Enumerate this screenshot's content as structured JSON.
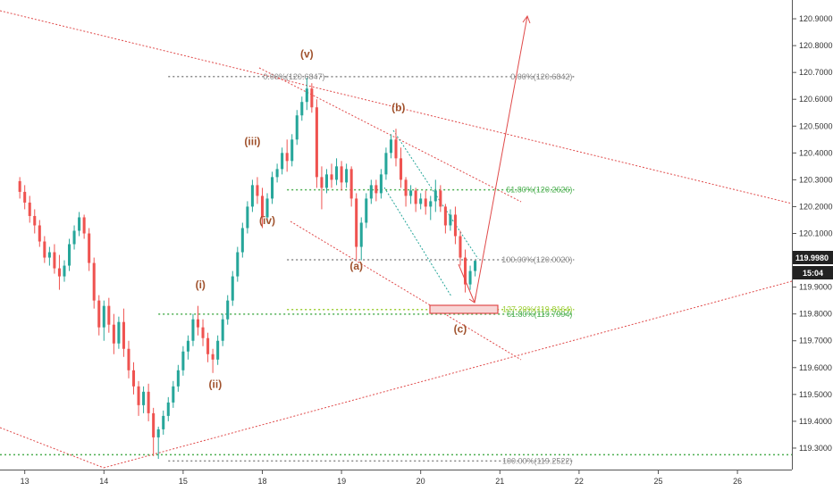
{
  "chart_data": {
    "type": "candlestick",
    "y_ticks": [
      "120.9000",
      "120.8000",
      "120.7000",
      "120.6000",
      "120.5000",
      "120.4000",
      "120.3000",
      "120.2000",
      "120.1000",
      "119.9000",
      "119.8000",
      "119.7000",
      "119.6000",
      "119.5000",
      "119.4000",
      "119.3000"
    ],
    "ylim": [
      119.22,
      120.97
    ],
    "x_ticks": [
      "13",
      "14",
      "15",
      "18",
      "19",
      "20",
      "21",
      "22",
      "25",
      "26"
    ],
    "x_tick_index": [
      1,
      17,
      33,
      49,
      65,
      81,
      97,
      113,
      129,
      145
    ],
    "x_range": [
      -4,
      156
    ],
    "last_price": "119.9980",
    "countdown": "15:04",
    "fib_levels": [
      {
        "label": "0.00%(120.6847)",
        "value": 120.6847,
        "color": "#888888",
        "x0": 30,
        "x1": 62
      },
      {
        "label": "0.00%(120.6842)",
        "value": 120.6842,
        "color": "#888888",
        "x0": 62,
        "x1": 112
      },
      {
        "label": "61.80%(120.2626)",
        "value": 120.2626,
        "color": "#4caf50",
        "x0": 54,
        "x1": 112
      },
      {
        "label": "100.00%(120.0020)",
        "value": 120.002,
        "color": "#888888",
        "x0": 54,
        "x1": 112
      },
      {
        "label": "127.20%(119.8164)",
        "value": 119.8164,
        "color": "#9acd32",
        "x0": 54,
        "x1": 112
      },
      {
        "label": "61.80%(119.7994)",
        "value": 119.7994,
        "color": "#4caf50",
        "x0": 28,
        "x1": 112
      },
      {
        "label": "100.00%(119.2522)",
        "value": 119.2522,
        "color": "#888888",
        "x0": 30,
        "x1": 112
      }
    ],
    "wave_labels": [
      {
        "label": "(i)",
        "x": 36.5,
        "y": 119.895
      },
      {
        "label": "(ii)",
        "x": 39.5,
        "y": 119.525
      },
      {
        "label": "(iii)",
        "x": 47,
        "y": 120.43
      },
      {
        "label": "(iv)",
        "x": 50,
        "y": 120.135
      },
      {
        "label": "(v)",
        "x": 58,
        "y": 120.755
      },
      {
        "label": "(a)",
        "x": 68,
        "y": 119.965
      },
      {
        "label": "(b)",
        "x": 76.5,
        "y": 120.555
      },
      {
        "label": "(c)",
        "x": 89,
        "y": 119.73
      }
    ],
    "candles": [
      [
        120.295,
        120.31,
        120.23,
        120.255
      ],
      [
        120.255,
        120.28,
        120.19,
        120.215
      ],
      [
        120.215,
        120.24,
        120.14,
        120.165
      ],
      [
        120.165,
        120.19,
        120.1,
        120.13
      ],
      [
        120.13,
        120.15,
        120.05,
        120.07
      ],
      [
        120.07,
        120.09,
        119.99,
        120.01
      ],
      [
        120.01,
        120.05,
        119.98,
        120.03
      ],
      [
        120.03,
        120.06,
        119.95,
        119.97
      ],
      [
        119.97,
        120.02,
        119.89,
        119.94
      ],
      [
        119.94,
        120.0,
        119.92,
        119.98
      ],
      [
        119.98,
        120.08,
        119.96,
        120.06
      ],
      [
        120.06,
        120.13,
        120.04,
        120.11
      ],
      [
        120.11,
        120.18,
        120.09,
        120.16
      ],
      [
        120.16,
        120.17,
        120.08,
        120.1
      ],
      [
        120.1,
        120.12,
        119.96,
        119.99
      ],
      [
        119.99,
        120.01,
        119.82,
        119.85
      ],
      [
        119.85,
        119.87,
        119.72,
        119.75
      ],
      [
        119.75,
        119.85,
        119.7,
        119.83
      ],
      [
        119.83,
        119.86,
        119.73,
        119.76
      ],
      [
        119.76,
        119.8,
        119.65,
        119.69
      ],
      [
        119.69,
        119.79,
        119.67,
        119.77
      ],
      [
        119.77,
        119.82,
        119.64,
        119.67
      ],
      [
        119.67,
        119.7,
        119.56,
        119.59
      ],
      [
        119.59,
        119.62,
        119.5,
        119.53
      ],
      [
        119.53,
        119.55,
        119.42,
        119.46
      ],
      [
        119.46,
        119.53,
        119.43,
        119.51
      ],
      [
        119.51,
        119.54,
        119.4,
        119.43
      ],
      [
        119.43,
        119.45,
        119.27,
        119.34
      ],
      [
        119.34,
        119.38,
        119.26,
        119.37
      ],
      [
        119.37,
        119.44,
        119.35,
        119.42
      ],
      [
        119.42,
        119.49,
        119.4,
        119.47
      ],
      [
        119.47,
        119.55,
        119.45,
        119.53
      ],
      [
        119.53,
        119.61,
        119.51,
        119.59
      ],
      [
        119.59,
        119.68,
        119.57,
        119.66
      ],
      [
        119.66,
        119.72,
        119.63,
        119.7
      ],
      [
        119.7,
        119.8,
        119.68,
        119.78
      ],
      [
        119.78,
        119.83,
        119.72,
        119.75
      ],
      [
        119.75,
        119.78,
        119.68,
        119.71
      ],
      [
        119.71,
        119.73,
        119.62,
        119.65
      ],
      [
        119.65,
        119.67,
        119.58,
        119.63
      ],
      [
        119.63,
        119.72,
        119.61,
        119.7
      ],
      [
        119.7,
        119.8,
        119.68,
        119.78
      ],
      [
        119.78,
        119.87,
        119.76,
        119.85
      ],
      [
        119.85,
        119.96,
        119.83,
        119.94
      ],
      [
        119.94,
        120.05,
        119.92,
        120.03
      ],
      [
        120.03,
        120.14,
        120.01,
        120.12
      ],
      [
        120.12,
        120.22,
        120.1,
        120.2
      ],
      [
        120.2,
        120.3,
        120.18,
        120.28
      ],
      [
        120.28,
        120.31,
        120.21,
        120.24
      ],
      [
        120.24,
        120.27,
        120.12,
        120.16
      ],
      [
        120.16,
        120.25,
        120.14,
        120.23
      ],
      [
        120.23,
        120.33,
        120.21,
        120.31
      ],
      [
        120.31,
        120.36,
        120.29,
        120.34
      ],
      [
        120.34,
        120.42,
        120.32,
        120.4
      ],
      [
        120.4,
        120.45,
        120.33,
        120.37
      ],
      [
        120.37,
        120.47,
        120.35,
        120.45
      ],
      [
        120.45,
        120.56,
        120.43,
        120.54
      ],
      [
        120.54,
        120.61,
        120.52,
        120.59
      ],
      [
        120.59,
        120.68,
        120.56,
        120.64
      ],
      [
        120.64,
        120.66,
        120.55,
        120.57
      ],
      [
        120.57,
        120.6,
        120.27,
        120.31
      ],
      [
        120.31,
        120.35,
        120.19,
        120.27
      ],
      [
        120.27,
        120.34,
        120.25,
        120.32
      ],
      [
        120.32,
        120.36,
        120.27,
        120.3
      ],
      [
        120.3,
        120.38,
        120.28,
        120.35
      ],
      [
        120.35,
        120.37,
        120.26,
        120.29
      ],
      [
        120.29,
        120.36,
        120.27,
        120.34
      ],
      [
        120.34,
        120.35,
        120.2,
        120.23
      ],
      [
        120.23,
        120.25,
        120.0,
        120.05
      ],
      [
        120.05,
        120.16,
        120.0,
        120.14
      ],
      [
        120.14,
        120.25,
        120.12,
        120.23
      ],
      [
        120.23,
        120.3,
        120.21,
        120.28
      ],
      [
        120.28,
        120.3,
        120.22,
        120.25
      ],
      [
        120.25,
        120.34,
        120.23,
        120.32
      ],
      [
        120.32,
        120.42,
        120.3,
        120.4
      ],
      [
        120.4,
        120.47,
        120.38,
        120.45
      ],
      [
        120.45,
        120.49,
        120.35,
        120.38
      ],
      [
        120.38,
        120.42,
        120.27,
        120.3
      ],
      [
        120.3,
        120.31,
        120.2,
        120.24
      ],
      [
        120.24,
        120.28,
        120.21,
        120.26
      ],
      [
        120.26,
        120.27,
        120.18,
        120.21
      ],
      [
        120.21,
        120.25,
        120.19,
        120.23
      ],
      [
        120.23,
        120.26,
        120.17,
        120.2
      ],
      [
        120.2,
        120.24,
        120.15,
        120.22
      ],
      [
        120.22,
        120.3,
        120.18,
        120.26
      ],
      [
        120.26,
        120.28,
        120.18,
        120.2
      ],
      [
        120.2,
        120.21,
        120.1,
        120.13
      ],
      [
        120.13,
        120.19,
        120.11,
        120.17
      ],
      [
        120.17,
        120.2,
        120.06,
        120.09
      ],
      [
        120.09,
        120.11,
        119.98,
        120.01
      ],
      [
        120.01,
        120.04,
        119.88,
        119.91
      ],
      [
        119.91,
        119.98,
        119.89,
        119.96
      ],
      [
        119.96,
        120.0,
        119.94,
        119.998
      ]
    ]
  }
}
